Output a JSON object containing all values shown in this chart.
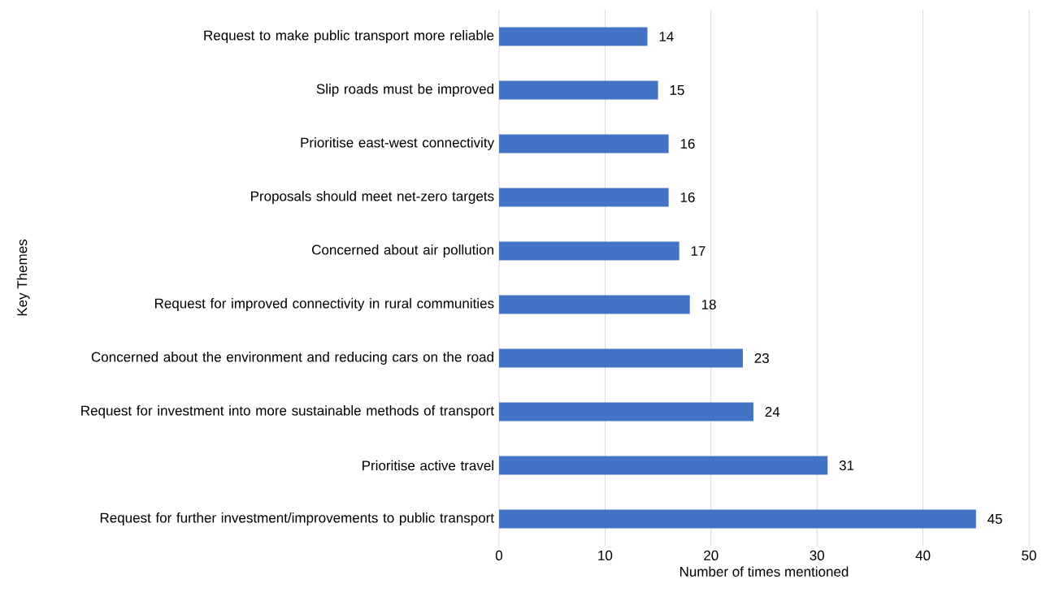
{
  "chart_data": {
    "type": "bar",
    "orientation": "horizontal",
    "xlabel": "Number of times mentioned",
    "ylabel": "Key Themes",
    "categories": [
      "Request to make public transport more reliable",
      "Slip roads must be improved",
      "Prioritise east-west connectivity",
      "Proposals should meet net-zero targets",
      "Concerned about air pollution",
      "Request for improved connectivity in rural communities",
      "Concerned about the environment and reducing cars on the road",
      "Request for investment into more sustainable methods of transport",
      "Prioritise active travel",
      "Request for further investment/improvements to public transport"
    ],
    "values": [
      14,
      15,
      16,
      16,
      17,
      18,
      23,
      24,
      31,
      45
    ],
    "color": "#4472c4",
    "xlim": [
      0,
      50
    ],
    "xticks": [
      0,
      10,
      20,
      30,
      40,
      50
    ],
    "grid": "x",
    "data_labels": true
  }
}
